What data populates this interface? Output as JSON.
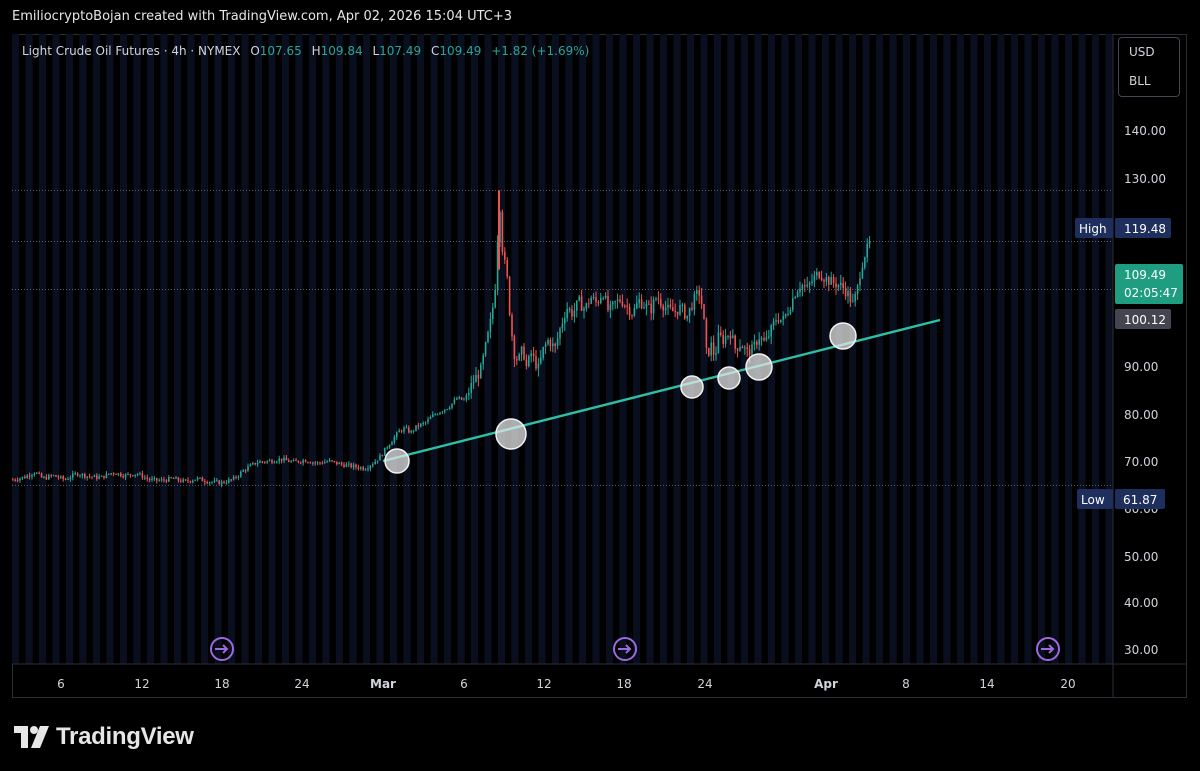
{
  "header": {
    "credit": "EmiliocryptoBojan created with TradingView.com, Apr 02, 2026 15:04 UTC+3"
  },
  "legend": {
    "symbol": "Light Crude Oil Futures · 4h · NYMEX",
    "open_label": "O",
    "open": "107.65",
    "high_label": "H",
    "high": "109.84",
    "low_label": "L",
    "low": "107.49",
    "close_label": "C",
    "close": "109.49",
    "change": "+1.82 (+1.69%)"
  },
  "unit_selector": {
    "currency": "USD",
    "unit": "BLL"
  },
  "price_axis": {
    "ticks": [
      "140.00",
      "130.00",
      "90.00",
      "80.00",
      "70.00",
      "60.00",
      "50.00",
      "40.00",
      "30.00"
    ],
    "high": {
      "label": "High",
      "value": "119.48"
    },
    "low": {
      "label": "Low",
      "value": "61.87"
    },
    "last": {
      "value": "109.49",
      "countdown": "02:05:47"
    },
    "marker": {
      "value": "100.12"
    }
  },
  "time_axis": {
    "ticks": [
      "6",
      "12",
      "18",
      "24",
      "Mar",
      "6",
      "12",
      "18",
      "24",
      "Apr",
      "8",
      "14",
      "20"
    ]
  },
  "brand": {
    "name": "TradingView"
  },
  "colors": {
    "up": "#26a69a",
    "down": "#ef5350",
    "trendline": "#2fbfa4",
    "session_bg": "#0a0f1f",
    "event": "#9c6ade",
    "label_bg": "#1e2f5e"
  },
  "icons": {
    "event_icons": [
      "economic-event-icon",
      "economic-event-icon",
      "economic-event-icon"
    ],
    "logo": "tradingview-logo-icon"
  },
  "chart_data": {
    "type": "candlestick",
    "ylim": [
      27,
      150
    ],
    "x_ticks": [
      "6",
      "12",
      "18",
      "24",
      "Mar",
      "6",
      "12",
      "18",
      "24",
      "Apr",
      "8",
      "14",
      "20"
    ],
    "series": [
      {
        "path": [
          [
            0,
            63.0
          ],
          [
            12,
            63.5
          ],
          [
            22,
            64.5
          ],
          [
            30,
            63.2
          ],
          [
            40,
            63.8
          ],
          [
            52,
            63.0
          ],
          [
            64,
            64.2
          ],
          [
            76,
            63.6
          ],
          [
            88,
            63.4
          ],
          [
            100,
            64.4
          ],
          [
            112,
            63.8
          ],
          [
            124,
            64.2
          ],
          [
            136,
            63.0
          ],
          [
            148,
            62.8
          ],
          [
            160,
            63.2
          ],
          [
            172,
            62.6
          ],
          [
            184,
            63.2
          ],
          [
            196,
            62.6
          ],
          [
            208,
            62.4
          ],
          [
            220,
            63.0
          ],
          [
            232,
            65.0
          ],
          [
            244,
            66.4
          ],
          [
            256,
            66.6
          ],
          [
            268,
            67.0
          ],
          [
            280,
            66.4
          ],
          [
            292,
            66.8
          ],
          [
            304,
            66.2
          ],
          [
            316,
            66.6
          ],
          [
            328,
            66.0
          ],
          [
            340,
            65.6
          ],
          [
            352,
            65.2
          ],
          [
            360,
            66.2
          ],
          [
            368,
            67.6
          ],
          [
            374,
            69.4
          ],
          [
            380,
            70.8
          ],
          [
            386,
            72.4
          ],
          [
            392,
            73.0
          ],
          [
            398,
            72.2
          ],
          [
            404,
            73.4
          ],
          [
            412,
            74.0
          ],
          [
            420,
            75.5
          ],
          [
            428,
            76.4
          ],
          [
            436,
            77.2
          ],
          [
            444,
            78.8
          ],
          [
            452,
            78.5
          ],
          [
            460,
            82.0
          ],
          [
            468,
            84.4
          ],
          [
            474,
            90.0
          ],
          [
            478,
            94.0
          ],
          [
            482,
            99.4
          ],
          [
            485,
            111.0
          ],
          [
            487,
            117.0
          ],
          [
            490,
            107.0
          ],
          [
            494,
            103.0
          ],
          [
            498,
            93.0
          ],
          [
            502,
            87.0
          ],
          [
            506,
            86.4
          ],
          [
            510,
            88.6
          ],
          [
            514,
            84.6
          ],
          [
            518,
            87.8
          ],
          [
            522,
            86.0
          ],
          [
            526,
            84.6
          ],
          [
            530,
            88.2
          ],
          [
            536,
            90.4
          ],
          [
            542,
            88.4
          ],
          [
            548,
            93.0
          ],
          [
            554,
            96.6
          ],
          [
            560,
            95.4
          ],
          [
            566,
            97.8
          ],
          [
            572,
            96.2
          ],
          [
            578,
            98.6
          ],
          [
            584,
            97.4
          ],
          [
            590,
            99.8
          ],
          [
            596,
            95.6
          ],
          [
            602,
            97.4
          ],
          [
            608,
            98.2
          ],
          [
            614,
            96.8
          ],
          [
            620,
            95.4
          ],
          [
            626,
            98.0
          ],
          [
            632,
            97.0
          ],
          [
            638,
            96.2
          ],
          [
            644,
            98.8
          ],
          [
            650,
            97.2
          ],
          [
            656,
            96.0
          ],
          [
            662,
            95.8
          ],
          [
            668,
            96.6
          ],
          [
            674,
            94.8
          ],
          [
            680,
            97.6
          ],
          [
            686,
            99.8
          ],
          [
            690,
            96.4
          ],
          [
            694,
            86.8
          ],
          [
            698,
            89.4
          ],
          [
            702,
            87.0
          ],
          [
            706,
            91.2
          ],
          [
            710,
            90.2
          ],
          [
            714,
            91.2
          ],
          [
            718,
            91.8
          ],
          [
            722,
            88.6
          ],
          [
            728,
            89.6
          ],
          [
            734,
            87.8
          ],
          [
            740,
            88.4
          ],
          [
            746,
            91.0
          ],
          [
            752,
            89.6
          ],
          [
            758,
            92.0
          ],
          [
            764,
            94.8
          ],
          [
            770,
            94.0
          ],
          [
            776,
            96.4
          ],
          [
            782,
            99.4
          ],
          [
            788,
            101.2
          ],
          [
            794,
            100.2
          ],
          [
            800,
            102.0
          ],
          [
            806,
            103.4
          ],
          [
            812,
            102.4
          ],
          [
            818,
            101.6
          ],
          [
            824,
            101.2
          ],
          [
            830,
            100.6
          ],
          [
            836,
            99.0
          ],
          [
            840,
            97.2
          ],
          [
            844,
            99.4
          ],
          [
            848,
            104.4
          ],
          [
            852,
            107.0
          ],
          [
            856,
            108.6
          ],
          [
            858,
            109.49
          ]
        ]
      }
    ]
  }
}
